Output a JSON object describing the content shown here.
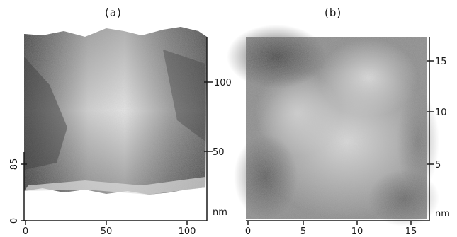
{
  "panel_a": {
    "label": "(a)",
    "z_ticks": [
      "100",
      "50"
    ],
    "z_unit": "nm",
    "x_ticks": [
      "0",
      "50",
      "100"
    ],
    "left_ticks": [
      "0",
      "85"
    ]
  },
  "panel_b": {
    "label": "(b)",
    "y_ticks": [
      "15",
      "10",
      "5"
    ],
    "y_unit": "nm",
    "x_ticks": [
      "0",
      "5",
      "10",
      "15"
    ]
  }
}
